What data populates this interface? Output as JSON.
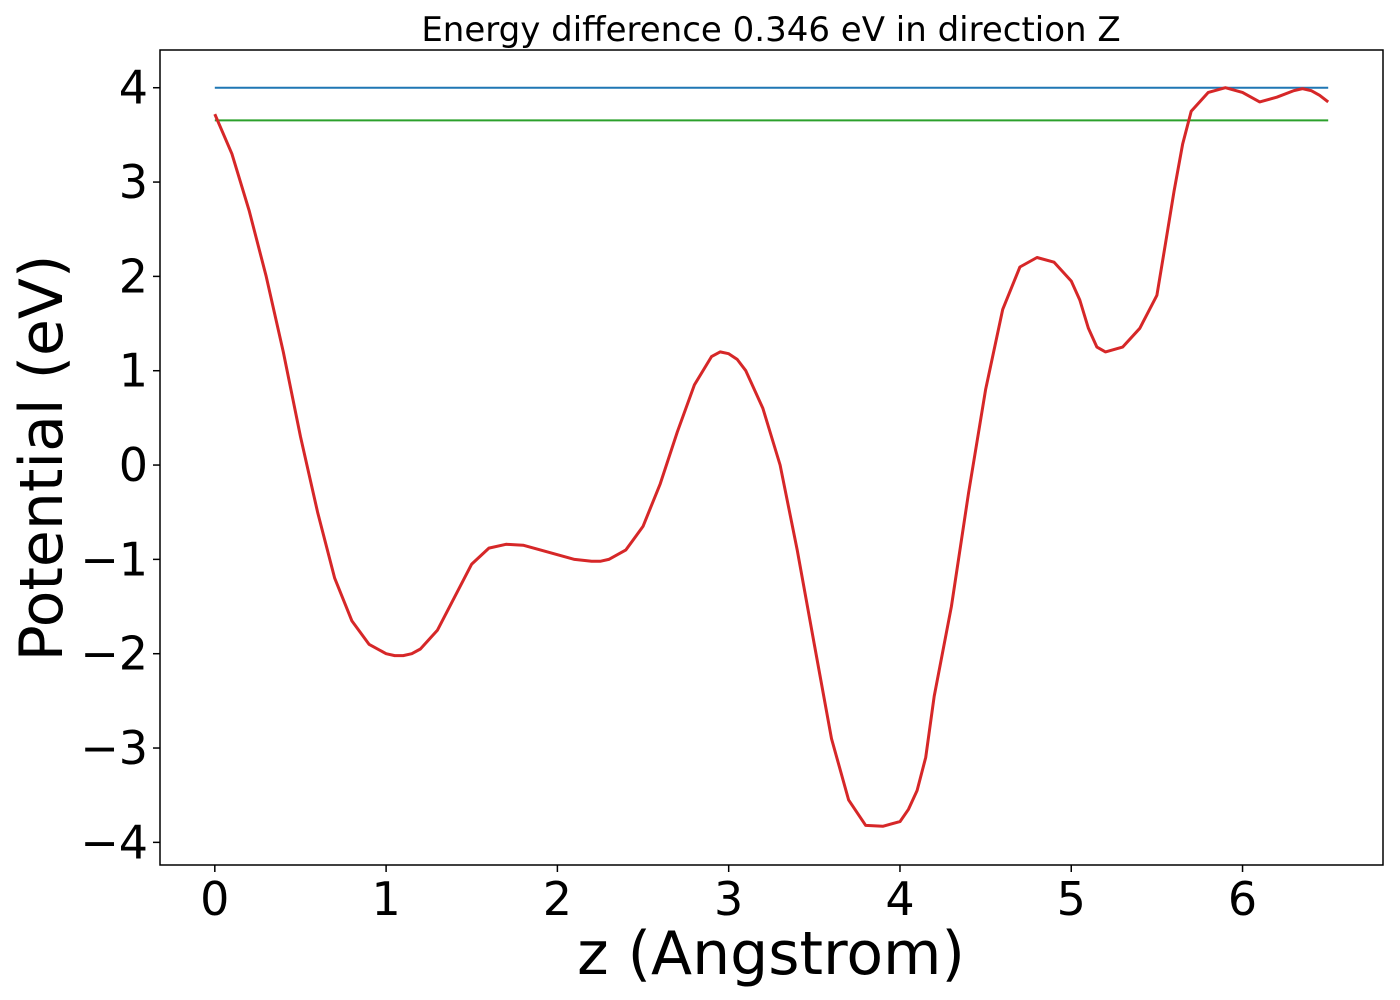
{
  "chart_data": {
    "type": "line",
    "title": "Energy difference 0.346 eV in direction Z",
    "xlabel": "z (Angstrom)",
    "ylabel": "Potential (eV)",
    "xlim": [
      -0.32,
      6.82
    ],
    "ylim": [
      -4.24,
      4.4
    ],
    "xticks": [
      0,
      1,
      2,
      3,
      4,
      5,
      6
    ],
    "xtick_labels": [
      "0",
      "1",
      "2",
      "3",
      "4",
      "5",
      "6"
    ],
    "yticks": [
      -4,
      -3,
      -2,
      -1,
      0,
      1,
      2,
      3,
      4
    ],
    "ytick_labels": [
      "−4",
      "−3",
      "−2",
      "−1",
      "0",
      "1",
      "2",
      "3",
      "4"
    ],
    "grid": false,
    "series": [
      {
        "color": "#1f77b4",
        "x": [
          0,
          6.5
        ],
        "y": [
          4.0,
          4.0
        ]
      },
      {
        "color": "#2ca02c",
        "x": [
          0,
          6.5
        ],
        "y": [
          3.654,
          3.654
        ]
      },
      {
        "color": "#d62728",
        "x": [
          0,
          0.1,
          0.2,
          0.3,
          0.4,
          0.5,
          0.6,
          0.7,
          0.8,
          0.9,
          1.0,
          1.05,
          1.1,
          1.15,
          1.2,
          1.3,
          1.4,
          1.5,
          1.6,
          1.7,
          1.8,
          1.9,
          2.0,
          2.1,
          2.2,
          2.25,
          2.3,
          2.4,
          2.5,
          2.6,
          2.7,
          2.8,
          2.9,
          2.95,
          3.0,
          3.05,
          3.1,
          3.2,
          3.3,
          3.4,
          3.5,
          3.6,
          3.7,
          3.8,
          3.9,
          4.0,
          4.05,
          4.1,
          4.15,
          4.2,
          4.3,
          4.4,
          4.5,
          4.6,
          4.7,
          4.8,
          4.9,
          5.0,
          5.05,
          5.1,
          5.15,
          5.2,
          5.3,
          5.4,
          5.5,
          5.55,
          5.6,
          5.65,
          5.7,
          5.8,
          5.9,
          6.0,
          6.1,
          6.2,
          6.3,
          6.35,
          6.4,
          6.45,
          6.5
        ],
        "y": [
          3.72,
          3.3,
          2.7,
          2.0,
          1.2,
          0.3,
          -0.5,
          -1.2,
          -1.65,
          -1.9,
          -2.0,
          -2.02,
          -2.02,
          -2.0,
          -1.95,
          -1.75,
          -1.4,
          -1.05,
          -0.88,
          -0.84,
          -0.85,
          -0.9,
          -0.95,
          -1.0,
          -1.02,
          -1.02,
          -1.0,
          -0.9,
          -0.65,
          -0.2,
          0.35,
          0.85,
          1.15,
          1.2,
          1.18,
          1.12,
          1.0,
          0.6,
          0.0,
          -0.9,
          -1.9,
          -2.9,
          -3.55,
          -3.82,
          -3.83,
          -3.78,
          -3.65,
          -3.45,
          -3.1,
          -2.45,
          -1.5,
          -0.3,
          0.8,
          1.65,
          2.1,
          2.2,
          2.15,
          1.95,
          1.75,
          1.45,
          1.25,
          1.2,
          1.25,
          1.45,
          1.8,
          2.35,
          2.9,
          3.4,
          3.75,
          3.95,
          4.0,
          3.95,
          3.85,
          3.9,
          3.97,
          3.99,
          3.97,
          3.92,
          3.85
        ]
      }
    ]
  }
}
